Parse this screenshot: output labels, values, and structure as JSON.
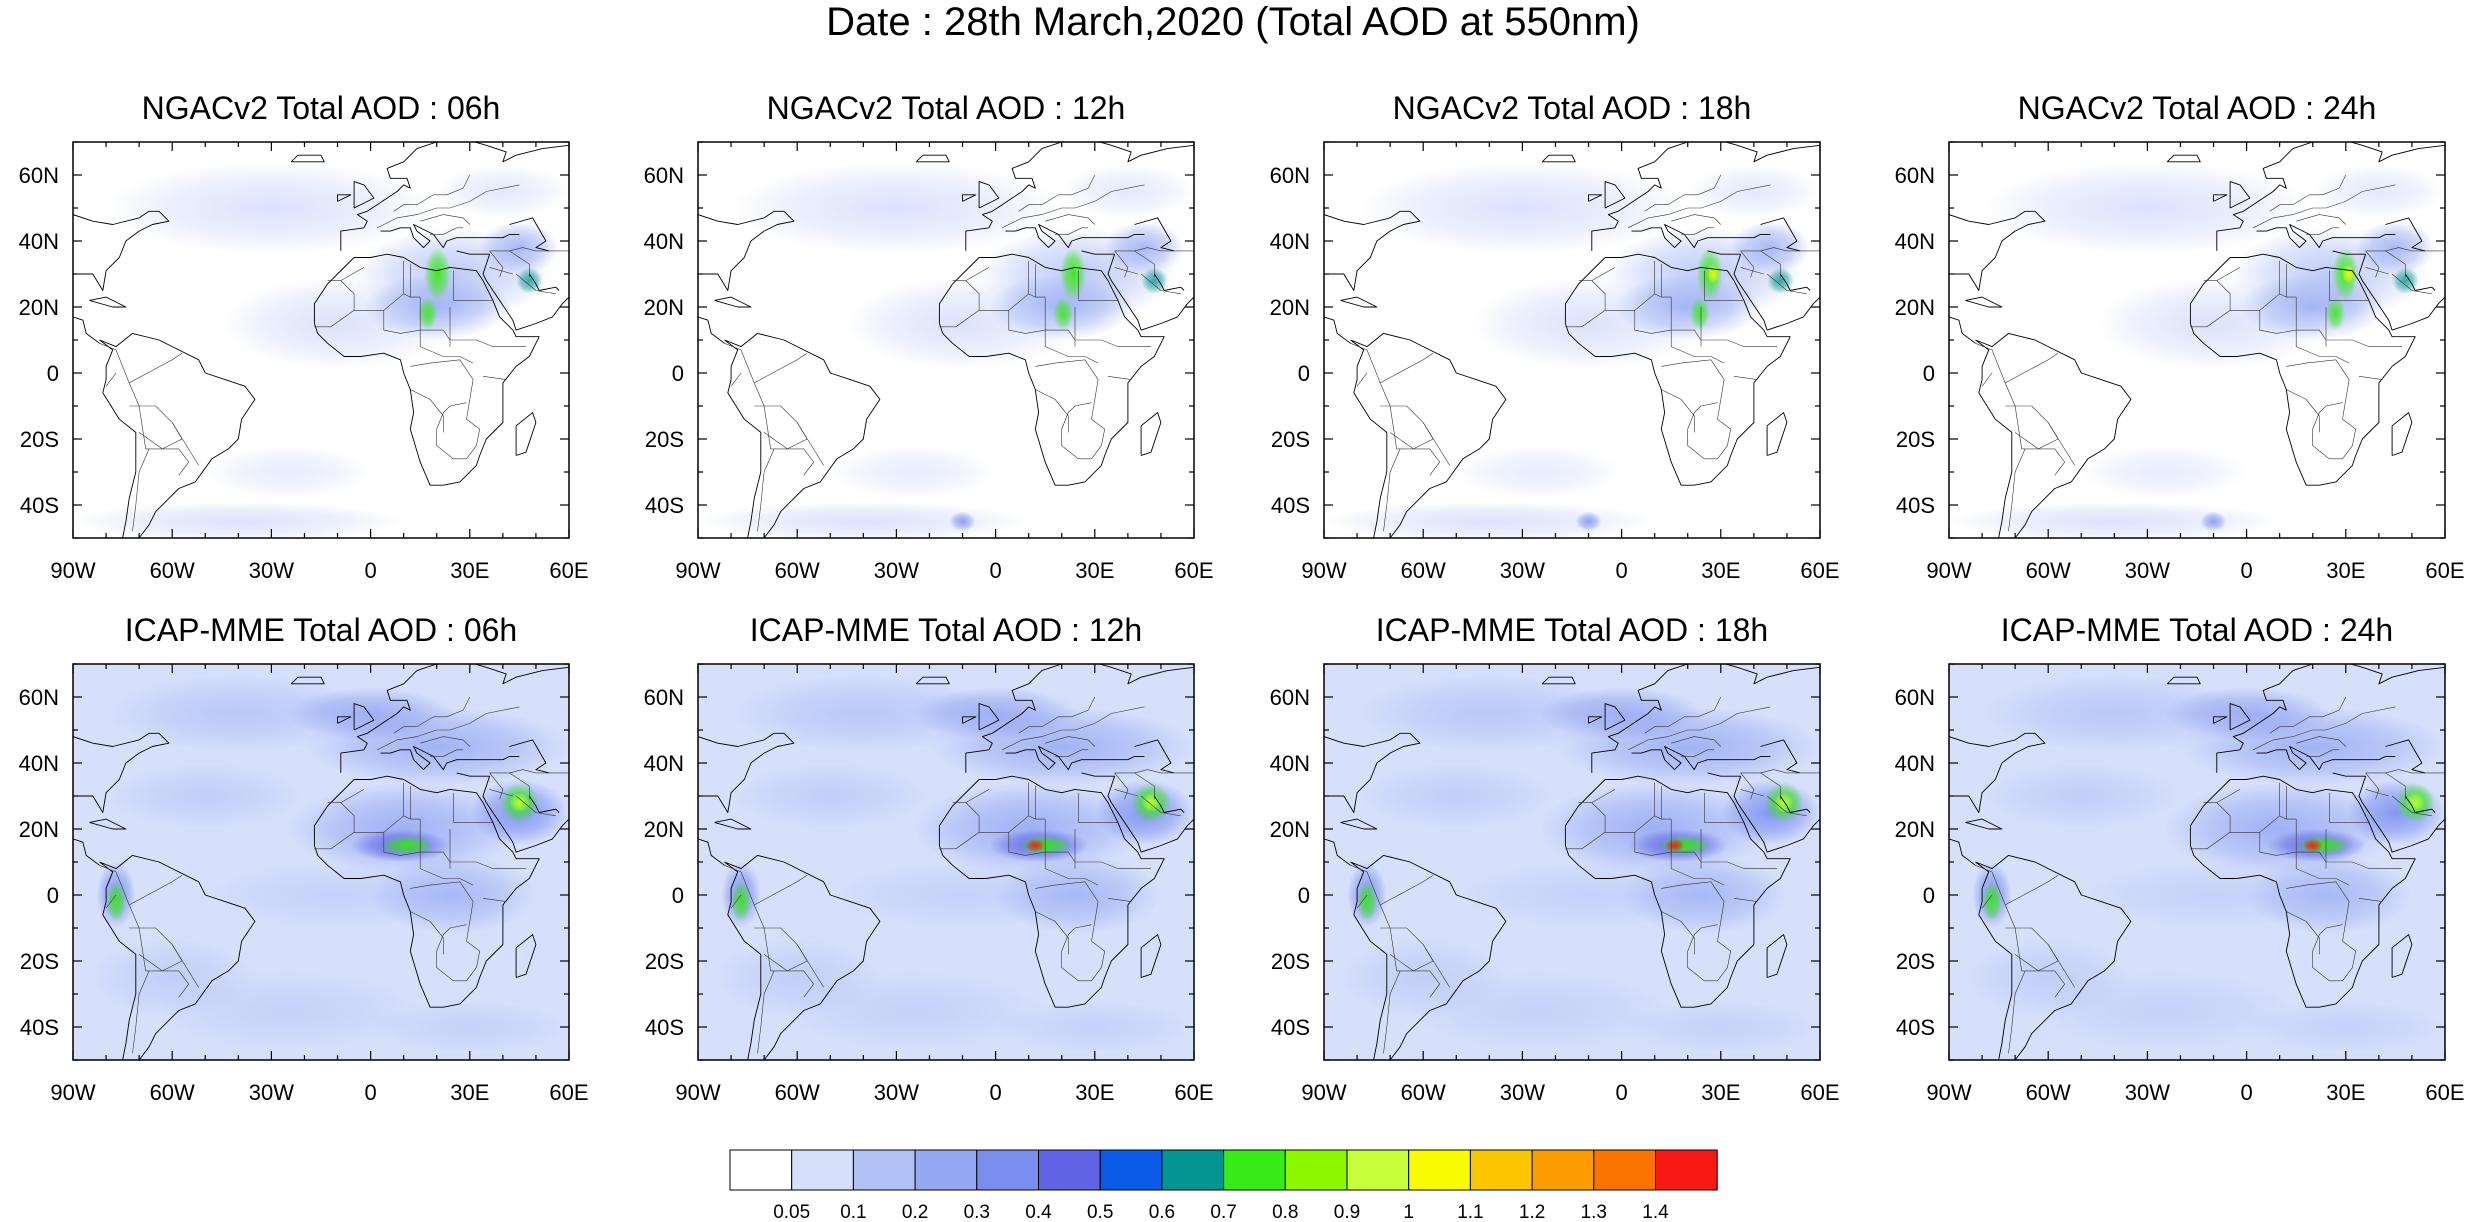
{
  "figure": {
    "title": "Date : 28th March,2020 (Total AOD at 550nm)"
  },
  "panels": [
    {
      "title": "NGACv2 Total AOD : 06h",
      "model": "NGACv2",
      "hour": "06h"
    },
    {
      "title": "NGACv2 Total AOD : 12h",
      "model": "NGACv2",
      "hour": "12h"
    },
    {
      "title": "NGACv2 Total AOD : 18h",
      "model": "NGACv2",
      "hour": "18h"
    },
    {
      "title": "NGACv2 Total AOD : 24h",
      "model": "NGACv2",
      "hour": "24h"
    },
    {
      "title": "ICAP-MME Total AOD : 06h",
      "model": "ICAP-MME",
      "hour": "06h"
    },
    {
      "title": "ICAP-MME Total AOD : 12h",
      "model": "ICAP-MME",
      "hour": "12h"
    },
    {
      "title": "ICAP-MME Total AOD : 18h",
      "model": "ICAP-MME",
      "hour": "18h"
    },
    {
      "title": "ICAP-MME Total AOD : 24h",
      "model": "ICAP-MME",
      "hour": "24h"
    }
  ],
  "axes": {
    "lon_ticks": [
      "90W",
      "60W",
      "30W",
      "0",
      "30E",
      "60E"
    ],
    "lat_ticks": [
      "60N",
      "40N",
      "20N",
      "0",
      "20S",
      "40S"
    ],
    "lon_values": [
      -90,
      -60,
      -30,
      0,
      30,
      60
    ],
    "lat_values": [
      60,
      40,
      20,
      0,
      -20,
      -40
    ],
    "lon_range": [
      -90,
      60
    ],
    "lat_range": [
      -50,
      70
    ]
  },
  "colorbar": {
    "labels": [
      "0.05",
      "0.1",
      "0.2",
      "0.3",
      "0.4",
      "0.5",
      "0.6",
      "0.7",
      "0.8",
      "0.9",
      "1",
      "1.1",
      "1.2",
      "1.3",
      "1.4"
    ],
    "colors": [
      "#ffffff",
      "#d7e0fb",
      "#b3c2f6",
      "#94a8f3",
      "#7a8ef0",
      "#6264e6",
      "#0b5ae8",
      "#069490",
      "#38ea16",
      "#8cf800",
      "#c4ff3a",
      "#fcfc00",
      "#fcc600",
      "#fc9c00",
      "#fc7400",
      "#f61812"
    ]
  }
}
